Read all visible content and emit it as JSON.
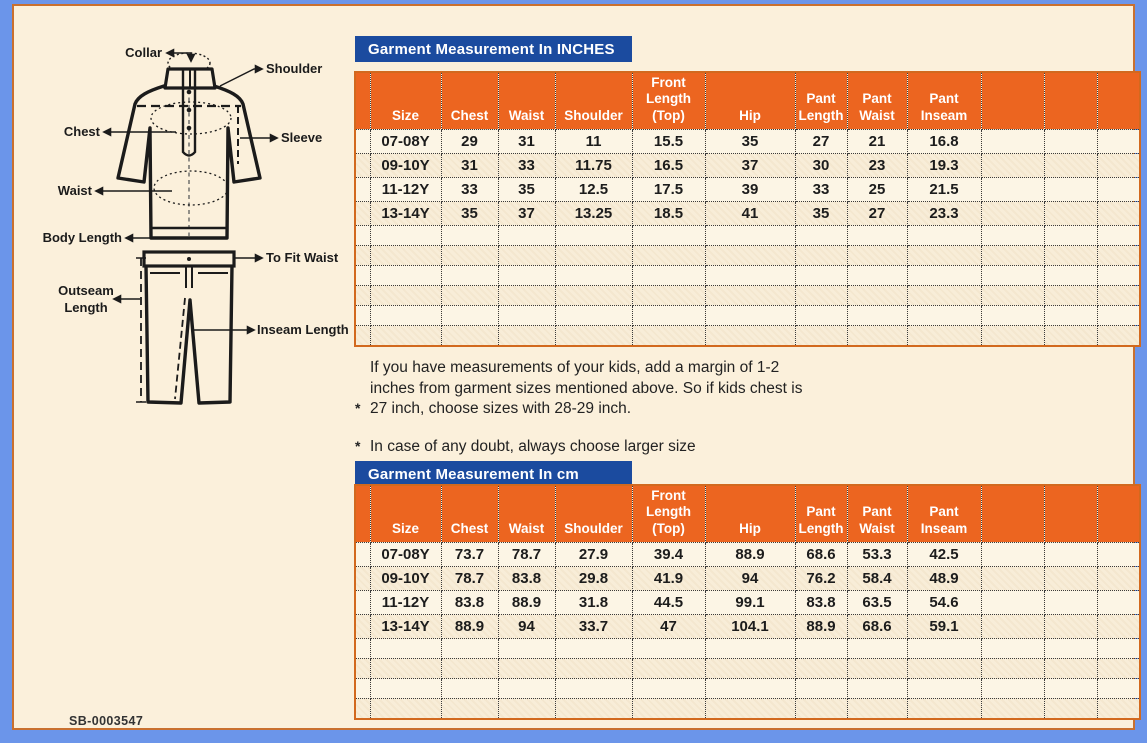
{
  "page": {
    "code": "SB-0003547"
  },
  "colors": {
    "frame_blue": "#6B95EA",
    "frame_orange": "#C9702F",
    "background_cream": "#FBF0DB",
    "header_orange": "#EC6520",
    "title_blue": "#1B4B9F",
    "row_light": "#FCF5E5",
    "row_dark": "#F8EDD8",
    "text_dark": "#1C1C1C"
  },
  "diagram": {
    "labels": {
      "collar": "Collar",
      "shoulder": "Shoulder",
      "chest": "Chest",
      "sleeve": "Sleeve",
      "waist": "Waist",
      "body_length": "Body Length",
      "to_fit_waist": "To Fit Waist",
      "outseam_word1": "Outseam",
      "outseam_word2": "Length",
      "inseam_length": "Inseam Length"
    }
  },
  "notes": [
    {
      "marker": "*",
      "text": "If you have measurements of your kids, add a margin of 1-2 inches from garment sizes mentioned above. So if kids chest is 27 inch, choose sizes with 28-29 inch."
    },
    {
      "marker": "*",
      "text": "In case of any doubt, always choose larger size"
    }
  ],
  "tables": [
    {
      "title": "Garment Measurement In INCHES",
      "columns": [
        "Size",
        "Chest",
        "Waist",
        "Shoulder",
        "Front Length (Top)",
        "Hip",
        "Pant Length",
        "Pant Waist",
        "Pant Inseam"
      ],
      "rows": [
        [
          "07-08Y",
          "29",
          "31",
          "11",
          "15.5",
          "35",
          "27",
          "21",
          "16.8"
        ],
        [
          "09-10Y",
          "31",
          "33",
          "11.75",
          "16.5",
          "37",
          "30",
          "23",
          "19.3"
        ],
        [
          "11-12Y",
          "33",
          "35",
          "12.5",
          "17.5",
          "39",
          "33",
          "25",
          "21.5"
        ],
        [
          "13-14Y",
          "35",
          "37",
          "13.25",
          "18.5",
          "41",
          "35",
          "27",
          "23.3"
        ]
      ],
      "empty_rows": 6,
      "empty_cols": 3
    },
    {
      "title": "Garment Measurement In cm",
      "columns": [
        "Size",
        "Chest",
        "Waist",
        "Shoulder",
        "Front Length (Top)",
        "Hip",
        "Pant Length",
        "Pant Waist",
        "Pant Inseam"
      ],
      "rows": [
        [
          "07-08Y",
          "73.7",
          "78.7",
          "27.9",
          "39.4",
          "88.9",
          "68.6",
          "53.3",
          "42.5"
        ],
        [
          "09-10Y",
          "78.7",
          "83.8",
          "29.8",
          "41.9",
          "94",
          "76.2",
          "58.4",
          "48.9"
        ],
        [
          "11-12Y",
          "83.8",
          "88.9",
          "31.8",
          "44.5",
          "99.1",
          "83.8",
          "63.5",
          "54.6"
        ],
        [
          "13-14Y",
          "88.9",
          "94",
          "33.7",
          "47",
          "104.1",
          "88.9",
          "68.6",
          "59.1"
        ]
      ],
      "empty_rows": 4,
      "empty_cols": 3
    }
  ]
}
